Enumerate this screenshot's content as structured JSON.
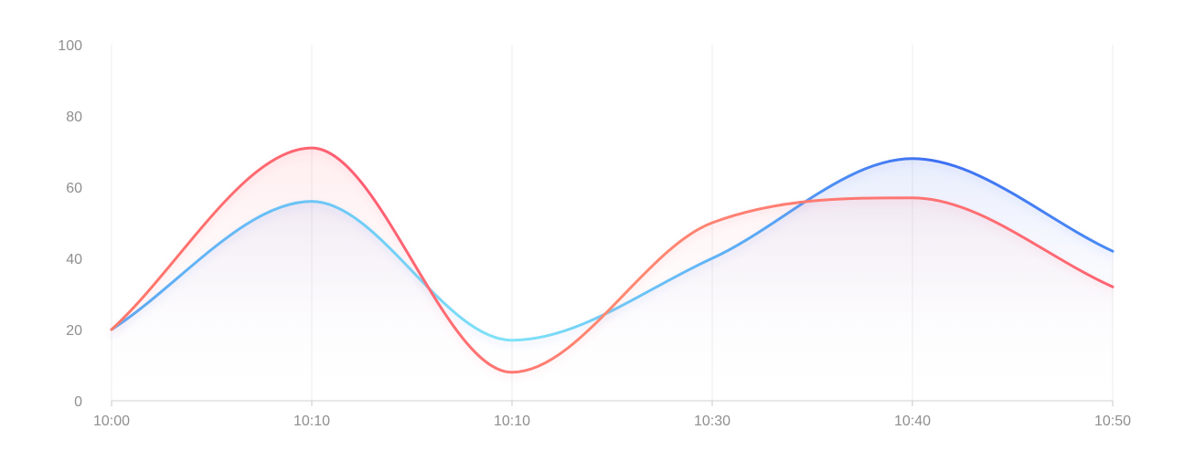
{
  "chart_data": {
    "type": "area",
    "title": "",
    "xlabel": "",
    "ylabel": "",
    "categories": [
      "10:00",
      "10:10",
      "10:10",
      "10:30",
      "10:40",
      "10:50"
    ],
    "y_ticks": [
      "0",
      "20",
      "40",
      "60",
      "80",
      "100"
    ],
    "ylim": [
      0,
      100
    ],
    "grid": "vertical",
    "legend": "none",
    "series": [
      {
        "values": [
          20,
          56,
          17,
          40,
          68,
          42
        ],
        "color": "#4a8bf5",
        "gradient": [
          "#5aa7f5",
          "#7fe3f7",
          "#5aa7f5",
          "#3d6ef2",
          "#4a8bf5"
        ]
      },
      {
        "values": [
          20,
          71,
          8,
          50,
          57,
          32
        ],
        "color": "#ff6473",
        "gradient": [
          "#ff7a6b",
          "#ff5d73",
          "#ff8a72",
          "#ff6473"
        ]
      }
    ]
  }
}
